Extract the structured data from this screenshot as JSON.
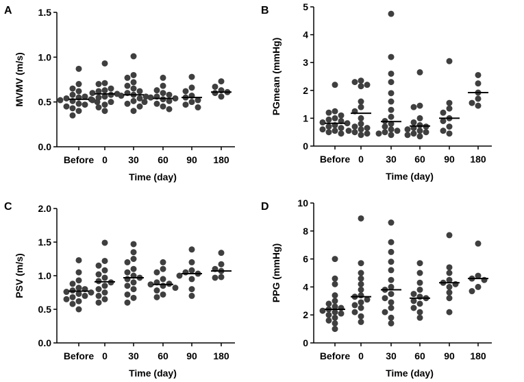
{
  "figure": {
    "colors": {
      "point": "#3f3f3f",
      "axis": "#000000"
    }
  },
  "chart_data": [
    {
      "panel": "A",
      "type": "scatter",
      "xlabel": "Time (day)",
      "ylabel": "MVMV (m/s)",
      "categories": [
        "Before",
        "0",
        "30",
        "60",
        "90",
        "180"
      ],
      "ylim": [
        0,
        1.5
      ],
      "yticks": [
        "0.0",
        "0.5",
        "1.0",
        "1.5"
      ],
      "medians": [
        0.53,
        0.59,
        0.58,
        0.54,
        0.55,
        0.61
      ],
      "points": [
        [
          0.87,
          0.7,
          0.65,
          0.62,
          0.58,
          0.56,
          0.55,
          0.54,
          0.53,
          0.52,
          0.51,
          0.5,
          0.48,
          0.47,
          0.45,
          0.43,
          0.4,
          0.35
        ],
        [
          0.93,
          0.71,
          0.7,
          0.65,
          0.63,
          0.62,
          0.6,
          0.59,
          0.58,
          0.56,
          0.55,
          0.52,
          0.5,
          0.47,
          0.44,
          0.4
        ],
        [
          1.01,
          0.8,
          0.77,
          0.72,
          0.68,
          0.65,
          0.62,
          0.6,
          0.58,
          0.57,
          0.56,
          0.54,
          0.51,
          0.48,
          0.45,
          0.4
        ],
        [
          0.77,
          0.68,
          0.63,
          0.6,
          0.58,
          0.56,
          0.55,
          0.54,
          0.53,
          0.51,
          0.5,
          0.48,
          0.45,
          0.42
        ],
        [
          0.78,
          0.66,
          0.62,
          0.57,
          0.55,
          0.52,
          0.5,
          0.47,
          0.44
        ],
        [
          0.73,
          0.67,
          0.63,
          0.61,
          0.6,
          0.56
        ]
      ]
    },
    {
      "panel": "B",
      "type": "scatter",
      "xlabel": "Time (day)",
      "ylabel": "PGmean (mmHg)",
      "categories": [
        "Before",
        "0",
        "30",
        "60",
        "90",
        "180"
      ],
      "ylim": [
        0,
        5
      ],
      "yticks": [
        "0",
        "1",
        "2",
        "3",
        "4",
        "5"
      ],
      "medians": [
        0.82,
        1.18,
        0.88,
        0.72,
        1.0,
        1.92
      ],
      "points": [
        [
          2.2,
          1.25,
          1.2,
          1.1,
          1.0,
          0.95,
          0.9,
          0.85,
          0.82,
          0.75,
          0.7,
          0.65,
          0.6,
          0.55,
          0.5,
          0.45
        ],
        [
          2.35,
          2.3,
          2.2,
          2.15,
          1.6,
          1.4,
          1.25,
          1.0,
          0.8,
          0.7,
          0.65,
          0.6,
          0.55,
          0.5,
          0.45,
          0.4
        ],
        [
          4.75,
          3.2,
          2.6,
          2.3,
          1.9,
          1.6,
          1.3,
          1.05,
          0.9,
          0.8,
          0.7,
          0.6,
          0.55,
          0.5,
          0.45,
          0.4
        ],
        [
          2.65,
          1.45,
          1.4,
          1.0,
          0.85,
          0.75,
          0.7,
          0.65,
          0.6,
          0.55,
          0.5,
          0.45,
          0.4,
          0.35
        ],
        [
          3.05,
          1.55,
          1.35,
          1.2,
          1.0,
          0.9,
          0.7,
          0.55,
          0.45
        ],
        [
          2.55,
          2.25,
          1.92,
          1.7,
          1.55,
          1.45
        ]
      ]
    },
    {
      "panel": "C",
      "type": "scatter",
      "xlabel": "Time (day)",
      "ylabel": "PSV (m/s)",
      "categories": [
        "Before",
        "0",
        "30",
        "60",
        "90",
        "180"
      ],
      "ylim": [
        0,
        2.0
      ],
      "yticks": [
        "0.0",
        "0.5",
        "1.0",
        "1.5",
        "2.0"
      ],
      "medians": [
        0.77,
        0.91,
        0.97,
        0.87,
        1.03,
        1.07
      ],
      "points": [
        [
          1.23,
          1.05,
          0.93,
          0.88,
          0.82,
          0.8,
          0.78,
          0.76,
          0.75,
          0.73,
          0.7,
          0.68,
          0.65,
          0.62,
          0.58,
          0.5
        ],
        [
          1.49,
          1.22,
          1.15,
          1.08,
          1.02,
          0.97,
          0.92,
          0.9,
          0.85,
          0.8,
          0.75,
          0.7,
          0.65,
          0.6
        ],
        [
          1.47,
          1.35,
          1.25,
          1.2,
          1.1,
          1.05,
          1.0,
          0.97,
          0.95,
          0.9,
          0.85,
          0.8,
          0.72,
          0.67,
          0.6
        ],
        [
          1.2,
          1.1,
          1.05,
          0.95,
          0.9,
          0.88,
          0.87,
          0.85,
          0.82,
          0.78,
          0.72,
          0.68
        ],
        [
          1.39,
          1.2,
          1.08,
          1.05,
          1.03,
          1.0,
          0.95,
          0.8,
          0.7
        ],
        [
          1.34,
          1.17,
          1.1,
          1.07,
          0.98,
          0.97
        ]
      ]
    },
    {
      "panel": "D",
      "type": "scatter",
      "xlabel": "Time (day)",
      "ylabel": "PPG (mmHg)",
      "categories": [
        "Before",
        "0",
        "30",
        "60",
        "90",
        "180"
      ],
      "ylim": [
        0,
        10
      ],
      "yticks": [
        "0",
        "2",
        "4",
        "6",
        "8",
        "10"
      ],
      "medians": [
        2.4,
        3.3,
        3.8,
        3.2,
        4.3,
        4.6
      ],
      "points": [
        [
          6.0,
          4.6,
          4.2,
          3.4,
          3.0,
          2.8,
          2.6,
          2.5,
          2.4,
          2.3,
          2.2,
          2.1,
          2.0,
          1.8,
          1.6,
          1.4,
          1.0
        ],
        [
          8.9,
          5.7,
          5.0,
          4.6,
          4.2,
          3.8,
          3.4,
          3.3,
          3.1,
          2.9,
          2.7,
          2.5,
          2.2,
          1.9,
          1.5
        ],
        [
          8.6,
          7.2,
          6.5,
          5.8,
          5.2,
          4.5,
          4.0,
          3.8,
          3.5,
          3.2,
          2.9,
          2.5,
          2.2,
          1.8,
          1.4
        ],
        [
          5.7,
          5.0,
          4.3,
          3.8,
          3.5,
          3.3,
          3.2,
          3.0,
          2.8,
          2.5,
          2.2,
          1.8
        ],
        [
          7.7,
          5.4,
          5.0,
          4.5,
          4.3,
          4.2,
          4.0,
          3.6,
          3.2,
          2.2
        ],
        [
          7.1,
          4.8,
          4.6,
          4.5,
          4.0,
          3.7
        ]
      ]
    }
  ]
}
